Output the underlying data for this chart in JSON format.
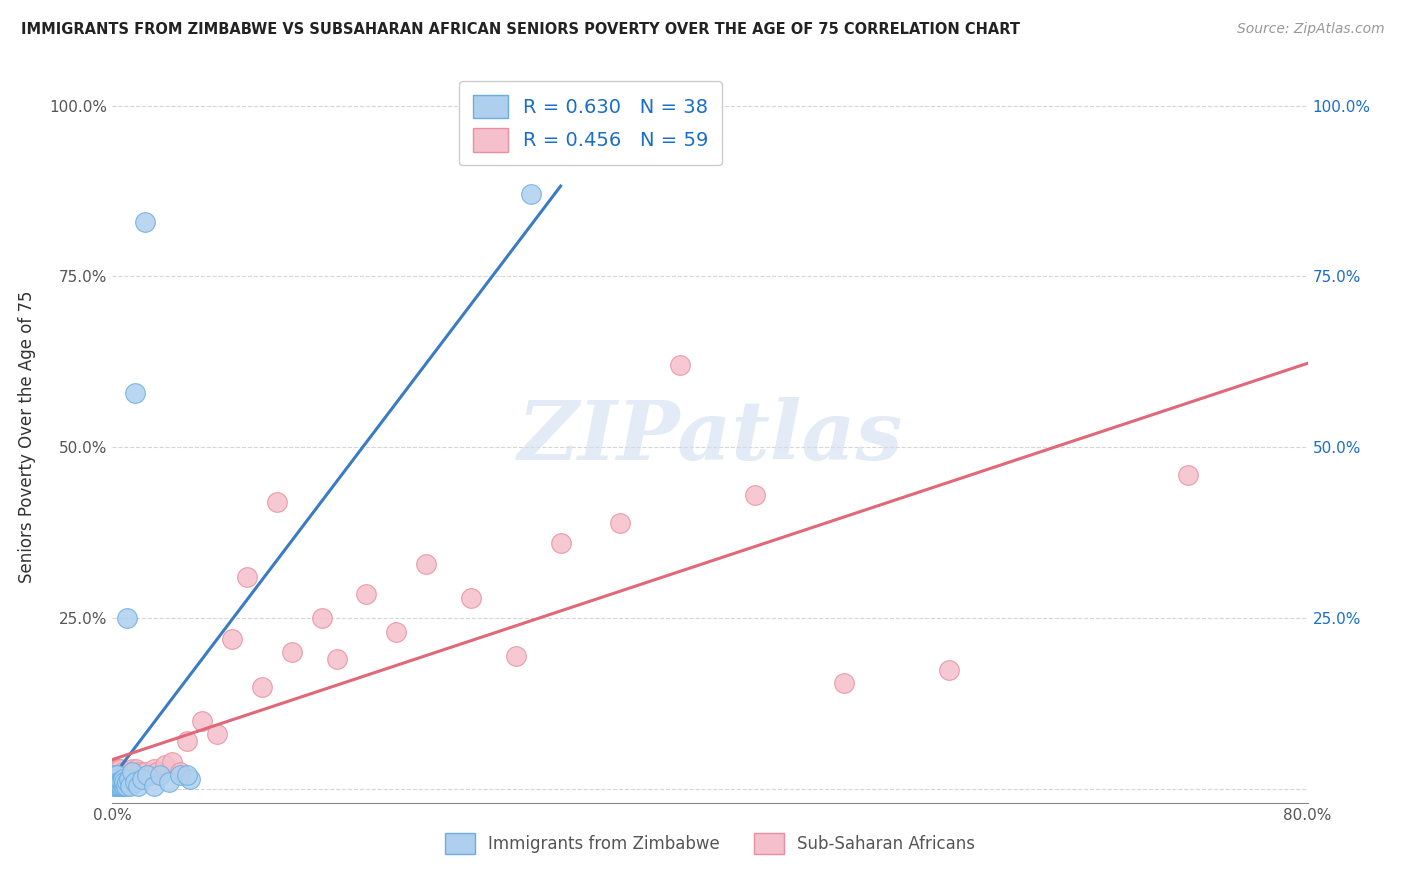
{
  "title": "IMMIGRANTS FROM ZIMBABWE VS SUBSAHARAN AFRICAN SENIORS POVERTY OVER THE AGE OF 75 CORRELATION CHART",
  "source": "Source: ZipAtlas.com",
  "ylabel": "Seniors Poverty Over the Age of 75",
  "xlim": [
    0.0,
    0.8
  ],
  "ylim": [
    -0.02,
    1.05
  ],
  "xtick_positions": [
    0.0,
    0.2,
    0.4,
    0.6,
    0.8
  ],
  "xtick_labels": [
    "0.0%",
    "",
    "",
    "",
    "80.0%"
  ],
  "ytick_positions": [
    0.0,
    0.25,
    0.5,
    0.75,
    1.0
  ],
  "ytick_labels": [
    "",
    "25.0%",
    "50.0%",
    "75.0%",
    "100.0%"
  ],
  "grid_color": "#cccccc",
  "background_color": "#ffffff",
  "watermark_text": "ZIPatlas",
  "series1_label": "Immigrants from Zimbabwe",
  "series1_color": "#aecfee",
  "series1_edge_color": "#6aaee0",
  "series1_R": 0.63,
  "series1_N": 38,
  "series1_line_color": "#3a7cc4",
  "series2_label": "Sub-Saharan Africans",
  "series2_color": "#f5bfcb",
  "series2_edge_color": "#e890a0",
  "series2_R": 0.456,
  "series2_N": 59,
  "series2_line_color": "#e06878",
  "legend_text_color": "#1a6ec7",
  "tick_color_left": "#555555",
  "tick_color_right": "#1a6ec7",
  "zimbabwe_x": [
    0.001,
    0.001,
    0.001,
    0.002,
    0.002,
    0.002,
    0.003,
    0.003,
    0.003,
    0.004,
    0.004,
    0.005,
    0.005,
    0.006,
    0.006,
    0.007,
    0.007,
    0.008,
    0.008,
    0.009,
    0.01,
    0.011,
    0.012,
    0.013,
    0.015,
    0.017,
    0.02,
    0.023,
    0.028,
    0.032,
    0.038,
    0.045,
    0.052,
    0.01,
    0.015,
    0.022,
    0.28,
    0.05
  ],
  "zimbabwe_y": [
    0.005,
    0.01,
    0.02,
    0.005,
    0.01,
    0.015,
    0.005,
    0.01,
    0.02,
    0.005,
    0.01,
    0.005,
    0.01,
    0.005,
    0.01,
    0.005,
    0.015,
    0.005,
    0.01,
    0.005,
    0.01,
    0.015,
    0.005,
    0.025,
    0.01,
    0.005,
    0.015,
    0.02,
    0.005,
    0.02,
    0.01,
    0.02,
    0.015,
    0.25,
    0.58,
    0.83,
    0.87,
    0.02
  ],
  "subsaharan_x": [
    0.001,
    0.001,
    0.001,
    0.002,
    0.002,
    0.002,
    0.003,
    0.003,
    0.003,
    0.004,
    0.004,
    0.004,
    0.005,
    0.005,
    0.005,
    0.006,
    0.006,
    0.007,
    0.007,
    0.008,
    0.008,
    0.009,
    0.01,
    0.011,
    0.012,
    0.013,
    0.015,
    0.016,
    0.018,
    0.02,
    0.022,
    0.025,
    0.028,
    0.03,
    0.035,
    0.04,
    0.045,
    0.05,
    0.06,
    0.07,
    0.08,
    0.09,
    0.1,
    0.11,
    0.12,
    0.14,
    0.15,
    0.17,
    0.19,
    0.21,
    0.24,
    0.27,
    0.3,
    0.34,
    0.38,
    0.43,
    0.49,
    0.56,
    0.72
  ],
  "subsaharan_y": [
    0.01,
    0.02,
    0.03,
    0.01,
    0.02,
    0.03,
    0.01,
    0.02,
    0.03,
    0.01,
    0.02,
    0.03,
    0.01,
    0.02,
    0.03,
    0.01,
    0.02,
    0.01,
    0.025,
    0.01,
    0.02,
    0.015,
    0.02,
    0.025,
    0.015,
    0.03,
    0.02,
    0.03,
    0.025,
    0.015,
    0.025,
    0.02,
    0.03,
    0.025,
    0.035,
    0.04,
    0.025,
    0.07,
    0.1,
    0.08,
    0.22,
    0.31,
    0.15,
    0.42,
    0.2,
    0.25,
    0.19,
    0.285,
    0.23,
    0.33,
    0.28,
    0.195,
    0.36,
    0.39,
    0.62,
    0.43,
    0.155,
    0.175,
    0.46
  ]
}
